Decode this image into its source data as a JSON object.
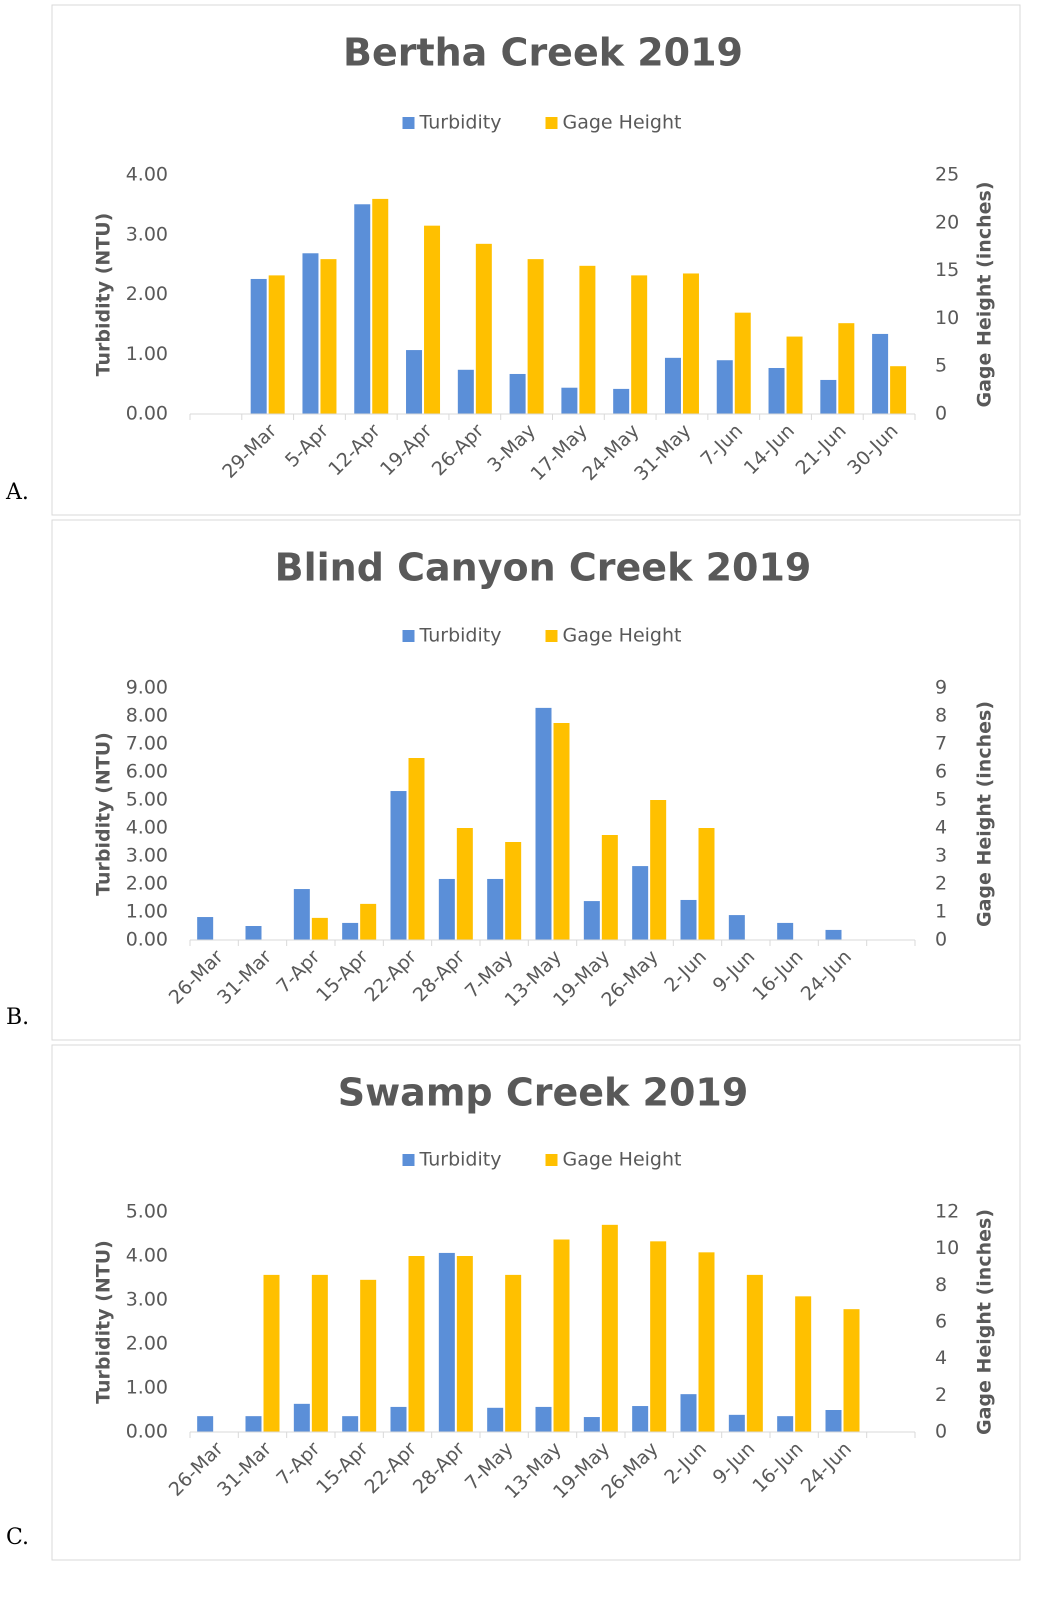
{
  "chart_data": [
    {
      "type": "bar",
      "panel_label": "A.",
      "title": "Bertha Creek 2019",
      "legend": "top",
      "categories": [
        null,
        "29-Mar",
        "5-Apr",
        "12-Apr",
        "19-Apr",
        "26-Apr",
        "3-May",
        "17-May",
        "24-May",
        "31-May",
        "7-Jun",
        "14-Jun",
        "21-Jun",
        "30-Jun"
      ],
      "series": [
        {
          "name": "Turbidity",
          "color": "#5B8FD8",
          "values": [
            null,
            2.26,
            2.69,
            3.51,
            1.07,
            0.74,
            0.67,
            0.44,
            0.42,
            0.94,
            0.9,
            0.77,
            0.57,
            1.34
          ]
        },
        {
          "name": "Gage Height",
          "color": "#FFC000",
          "axis": "y2",
          "values": [
            null,
            14.5,
            16.2,
            22.5,
            19.7,
            17.8,
            16.2,
            15.5,
            14.5,
            14.7,
            10.6,
            8.1,
            9.5,
            5.0
          ]
        }
      ],
      "ylabel": "Turbidity (NTU)",
      "y2label": "Gage Height (inches)",
      "ylim": [
        0,
        4
      ],
      "yticks": [
        {
          "value": 0,
          "label": "0.00"
        },
        {
          "value": 1,
          "label": "1.00"
        },
        {
          "value": 2,
          "label": "2.00"
        },
        {
          "value": 3,
          "label": "3.00"
        },
        {
          "value": 4,
          "label": "4.00"
        }
      ],
      "y2lim": [
        0,
        25
      ],
      "y2ticks": [
        0,
        5,
        10,
        15,
        20,
        25
      ],
      "grid": false
    },
    {
      "type": "bar",
      "panel_label": "B.",
      "title": "Blind Canyon Creek 2019",
      "legend": "top",
      "categories": [
        "26-Mar",
        "31-Mar",
        "7-Apr",
        "15-Apr",
        "22-Apr",
        "28-Apr",
        "7-May",
        "13-May",
        "19-May",
        "26-May",
        "2-Jun",
        "9-Jun",
        "16-Jun",
        "24-Jun",
        null
      ],
      "series": [
        {
          "name": "Turbidity",
          "color": "#5B8FD8",
          "values": [
            0.82,
            0.5,
            1.82,
            0.61,
            5.32,
            2.18,
            2.18,
            8.29,
            1.39,
            2.64,
            1.43,
            0.89,
            0.61,
            0.36,
            null
          ]
        },
        {
          "name": "Gage Height",
          "color": "#FFC000",
          "axis": "y2",
          "values": [
            null,
            null,
            0.79,
            1.29,
            6.5,
            4.0,
            3.5,
            7.75,
            3.75,
            5.0,
            4.0,
            null,
            null,
            null,
            null
          ]
        }
      ],
      "ylabel": "Turbidity (NTU)",
      "y2label": "Gage Height (inches)",
      "ylim": [
        0,
        9
      ],
      "yticks": [
        {
          "value": 0,
          "label": "0.00"
        },
        {
          "value": 1,
          "label": "1.00"
        },
        {
          "value": 2,
          "label": "2.00"
        },
        {
          "value": 3,
          "label": "3.00"
        },
        {
          "value": 4,
          "label": "4.00"
        },
        {
          "value": 5,
          "label": "5.00"
        },
        {
          "value": 6,
          "label": "6.00"
        },
        {
          "value": 7,
          "label": "7.00"
        },
        {
          "value": 8,
          "label": "8.00"
        },
        {
          "value": 9,
          "label": "9.00"
        }
      ],
      "y2lim": [
        0,
        9
      ],
      "y2ticks": [
        0,
        1,
        2,
        3,
        4,
        5,
        6,
        7,
        8,
        9
      ],
      "grid": false
    },
    {
      "type": "bar",
      "panel_label": "C.",
      "title": "Swamp Creek 2019",
      "legend": "top",
      "categories": [
        "26-Mar",
        "31-Mar",
        "7-Apr",
        "15-Apr",
        "22-Apr",
        "28-Apr",
        "7-May",
        "13-May",
        "19-May",
        "26-May",
        "2-Jun",
        "9-Jun",
        "16-Jun",
        "24-Jun",
        null
      ],
      "series": [
        {
          "name": "Turbidity",
          "color": "#5B8FD8",
          "values": [
            0.36,
            0.36,
            0.64,
            0.36,
            0.57,
            4.07,
            0.55,
            0.57,
            0.34,
            0.59,
            0.86,
            0.39,
            0.36,
            0.5,
            null
          ]
        },
        {
          "name": "Gage Height",
          "color": "#FFC000",
          "axis": "y2",
          "values": [
            null,
            8.57,
            8.57,
            8.3,
            9.6,
            9.6,
            8.57,
            10.5,
            11.3,
            10.4,
            9.8,
            8.57,
            7.4,
            6.7,
            null
          ]
        }
      ],
      "ylabel": "Turbidity (NTU)",
      "y2label": "Gage Height (inches)",
      "ylim": [
        0,
        5
      ],
      "yticks": [
        {
          "value": 0,
          "label": "0.00"
        },
        {
          "value": 1,
          "label": "1.00"
        },
        {
          "value": 2,
          "label": "2.00"
        },
        {
          "value": 3,
          "label": "3.00"
        },
        {
          "value": 4,
          "label": "4.00"
        },
        {
          "value": 5,
          "label": "5.00"
        }
      ],
      "y2lim": [
        0,
        12
      ],
      "y2ticks": [
        0,
        2,
        4,
        6,
        8,
        10,
        12
      ],
      "grid": false
    }
  ]
}
